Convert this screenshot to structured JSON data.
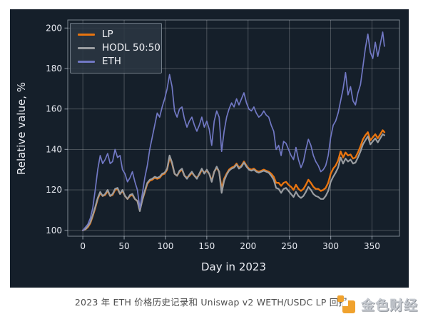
{
  "figure": {
    "background": "#151F2A",
    "xlabel": "Day in 2023",
    "ylabel": "Relative value, %"
  },
  "caption": "2023 年 ETH 价格历史记录和 Uniswap v2 WETH/USDC LP 回报",
  "logo": {
    "text": "金色财经",
    "icon_color": "#F0A22E"
  },
  "colors": {
    "figure_bg": "#151F2A",
    "grid": "rgba(255,255,255,0.25)",
    "spine": "rgba(205,215,225,0.55)",
    "tick_label": "#e7eaf1",
    "lp": "#E8740F",
    "hodl": "#9A9DA1",
    "eth": "#7178C4"
  },
  "chart_data": {
    "type": "line",
    "title": "",
    "xlabel": "Day in 2023",
    "ylabel": "Relative value, %",
    "xlim": [
      -18.25,
      383.25
    ],
    "ylim": [
      97.1,
      204.0
    ],
    "xticks": [
      0,
      50,
      100,
      150,
      200,
      250,
      300,
      350
    ],
    "yticks": [
      100,
      120,
      140,
      160,
      180,
      200
    ],
    "grid": true,
    "legend_position": "upper left",
    "x": [
      0,
      3,
      6,
      9,
      12,
      15,
      18,
      21,
      24,
      27,
      30,
      33,
      36,
      39,
      42,
      45,
      48,
      51,
      54,
      57,
      60,
      63,
      66,
      69,
      72,
      75,
      78,
      81,
      84,
      87,
      90,
      93,
      96,
      99,
      102,
      105,
      108,
      111,
      114,
      117,
      120,
      123,
      126,
      129,
      132,
      135,
      138,
      141,
      144,
      147,
      150,
      153,
      156,
      159,
      162,
      165,
      168,
      171,
      174,
      177,
      180,
      183,
      186,
      189,
      192,
      195,
      198,
      201,
      204,
      207,
      210,
      213,
      216,
      219,
      222,
      225,
      228,
      231,
      234,
      237,
      240,
      243,
      246,
      249,
      252,
      255,
      258,
      261,
      264,
      267,
      270,
      273,
      276,
      279,
      282,
      285,
      288,
      291,
      294,
      297,
      300,
      303,
      306,
      309,
      312,
      315,
      318,
      321,
      324,
      327,
      330,
      333,
      336,
      339,
      342,
      345,
      348,
      351,
      354,
      357,
      360,
      363,
      365
    ],
    "series": [
      {
        "name": "LP",
        "color": "#E8740F",
        "values": [
          100,
          100.5,
          101.5,
          103.5,
          107,
          111,
          115.5,
          118.5,
          117,
          117.5,
          119.5,
          117,
          117.5,
          120,
          120.5,
          118,
          119.5,
          117,
          115.5,
          117,
          117.5,
          115.5,
          114.5,
          110,
          115,
          119,
          123,
          124.5,
          125,
          126,
          125.5,
          126,
          127.5,
          128,
          130,
          136,
          133,
          128,
          127,
          129,
          130,
          127,
          126,
          127,
          128.5,
          127,
          126,
          127.5,
          130,
          128.5,
          129.5,
          128,
          124.5,
          129,
          131,
          129,
          120.5,
          125.5,
          128,
          130,
          131,
          131.5,
          133,
          131,
          132,
          134,
          132,
          130.5,
          130,
          130.5,
          129.5,
          129,
          129.5,
          130,
          129.5,
          129,
          128,
          126.5,
          123.5,
          123.5,
          122,
          123.5,
          124,
          122.5,
          121.5,
          120,
          122.5,
          120.5,
          119.5,
          120.5,
          122.5,
          125,
          123.5,
          121.5,
          120.5,
          120.5,
          119.5,
          120,
          121,
          123.5,
          128,
          130.5,
          132,
          134.5,
          139,
          136,
          138.5,
          137,
          137.5,
          135.5,
          136,
          138.5,
          141.5,
          145,
          147,
          148.5,
          144.5,
          146,
          147.5,
          145.5,
          147.5,
          149.5,
          148.5
        ]
      },
      {
        "name": "HODL 50:50",
        "color": "#9A9DA1",
        "values": [
          100,
          100.5,
          102,
          104,
          107.5,
          111.5,
          116,
          119,
          117,
          118,
          120,
          117,
          118,
          120.5,
          121,
          118,
          120,
          117,
          115.5,
          117.5,
          118,
          115.5,
          114.5,
          109.5,
          115,
          119.5,
          123.5,
          125,
          125.5,
          126.5,
          126,
          126.5,
          128,
          128.5,
          130.5,
          137,
          133.5,
          128,
          127,
          129.5,
          130.5,
          127,
          125.5,
          127.5,
          129,
          127,
          125.5,
          128,
          130.5,
          128,
          130,
          128,
          124,
          129,
          131.5,
          129,
          118.5,
          124.5,
          127.5,
          129.5,
          130.5,
          131,
          132.5,
          130.5,
          131.5,
          133.5,
          131.5,
          130,
          129.5,
          130,
          129,
          128.5,
          129,
          129.5,
          129,
          128.5,
          127,
          125,
          121,
          120.5,
          118.5,
          120.5,
          121,
          119.5,
          118,
          116.5,
          119,
          117,
          116,
          117,
          119,
          121.5,
          120,
          118,
          117,
          116.5,
          115.5,
          115.5,
          117,
          119.5,
          124,
          126.5,
          128.5,
          131,
          136,
          133,
          135.5,
          134,
          135,
          133,
          133.5,
          136,
          139,
          142.5,
          144.5,
          146.5,
          142.5,
          144,
          145.5,
          143.5,
          145.5,
          147.5,
          147
        ]
      },
      {
        "name": "ETH",
        "color": "#7178C4",
        "values": [
          100,
          101.5,
          103,
          106,
          111,
          120,
          130,
          137,
          133,
          135,
          138,
          133,
          134,
          140,
          136,
          137,
          130,
          128,
          124,
          126,
          129,
          124,
          120,
          111,
          118,
          126,
          132,
          140,
          146,
          152,
          158,
          156,
          161,
          165,
          170,
          177,
          171,
          159,
          156,
          160,
          161,
          155,
          151,
          154,
          156,
          152,
          149,
          152,
          156,
          151,
          154,
          150,
          142,
          154,
          159,
          156,
          139,
          149,
          156,
          160,
          163,
          161,
          165,
          162,
          165,
          168,
          163,
          160,
          159,
          161,
          158,
          156,
          157,
          159,
          157,
          156,
          152,
          149,
          140,
          142,
          137,
          144,
          143,
          140,
          137,
          135,
          141,
          135,
          131,
          134,
          140,
          145,
          142,
          137,
          134,
          132,
          129,
          130,
          132,
          137,
          146,
          152,
          154,
          158,
          164,
          170,
          178,
          167,
          171,
          164,
          162,
          168,
          172,
          181,
          190,
          197,
          188,
          185,
          193,
          186,
          192,
          198,
          191
        ]
      }
    ]
  }
}
